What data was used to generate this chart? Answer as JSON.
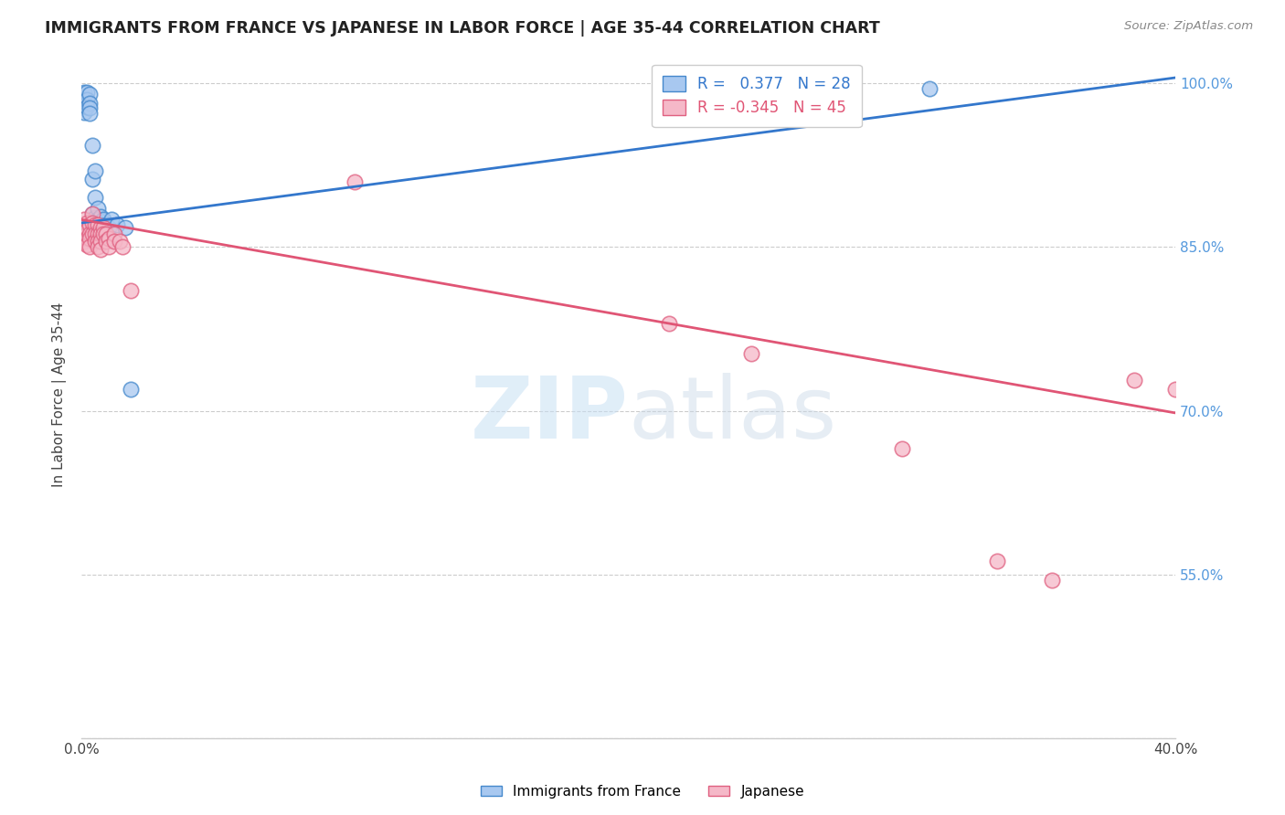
{
  "title": "IMMIGRANTS FROM FRANCE VS JAPANESE IN LABOR FORCE | AGE 35-44 CORRELATION CHART",
  "source": "Source: ZipAtlas.com",
  "ylabel": "In Labor Force | Age 35-44",
  "x_min": 0.0,
  "x_max": 0.4,
  "y_min": 0.4,
  "y_max": 1.03,
  "x_ticks": [
    0.0,
    0.05,
    0.1,
    0.15,
    0.2,
    0.25,
    0.3,
    0.35,
    0.4
  ],
  "x_tick_labels": [
    "0.0%",
    "",
    "",
    "",
    "",
    "",
    "",
    "",
    "40.0%"
  ],
  "y_ticks": [
    0.4,
    0.55,
    0.7,
    0.85,
    1.0
  ],
  "y_tick_labels": [
    "",
    "55.0%",
    "70.0%",
    "85.0%",
    "100.0%"
  ],
  "france_color": "#a8c8f0",
  "japan_color": "#f5b8c8",
  "france_edge_color": "#4488cc",
  "japan_edge_color": "#e06080",
  "france_line_color": "#3377cc",
  "japan_line_color": "#e05575",
  "watermark": "ZIPatlas",
  "france_r": 0.377,
  "france_n": 28,
  "japan_r": -0.345,
  "japan_n": 45,
  "france_line_x0": 0.0,
  "france_line_y0": 0.872,
  "france_line_x1": 0.4,
  "france_line_y1": 1.005,
  "japan_line_x0": 0.0,
  "japan_line_y0": 0.875,
  "japan_line_x1": 0.4,
  "japan_line_y1": 0.698,
  "france_points": [
    [
      0.001,
      0.992
    ],
    [
      0.001,
      0.973
    ],
    [
      0.002,
      0.992
    ],
    [
      0.002,
      0.985
    ],
    [
      0.002,
      0.978
    ],
    [
      0.003,
      0.99
    ],
    [
      0.003,
      0.982
    ],
    [
      0.003,
      0.977
    ],
    [
      0.003,
      0.972
    ],
    [
      0.004,
      0.943
    ],
    [
      0.004,
      0.912
    ],
    [
      0.004,
      0.88
    ],
    [
      0.005,
      0.92
    ],
    [
      0.005,
      0.895
    ],
    [
      0.005,
      0.877
    ],
    [
      0.005,
      0.868
    ],
    [
      0.006,
      0.885
    ],
    [
      0.006,
      0.875
    ],
    [
      0.007,
      0.878
    ],
    [
      0.007,
      0.87
    ],
    [
      0.008,
      0.875
    ],
    [
      0.009,
      0.87
    ],
    [
      0.01,
      0.868
    ],
    [
      0.011,
      0.875
    ],
    [
      0.013,
      0.87
    ],
    [
      0.016,
      0.868
    ],
    [
      0.018,
      0.72
    ],
    [
      0.31,
      0.995
    ]
  ],
  "japan_points": [
    [
      0.001,
      0.875
    ],
    [
      0.001,
      0.868
    ],
    [
      0.001,
      0.86
    ],
    [
      0.001,
      0.855
    ],
    [
      0.002,
      0.872
    ],
    [
      0.002,
      0.865
    ],
    [
      0.002,
      0.858
    ],
    [
      0.002,
      0.852
    ],
    [
      0.003,
      0.87
    ],
    [
      0.003,
      0.862
    ],
    [
      0.003,
      0.858
    ],
    [
      0.003,
      0.85
    ],
    [
      0.004,
      0.88
    ],
    [
      0.004,
      0.872
    ],
    [
      0.004,
      0.862
    ],
    [
      0.005,
      0.87
    ],
    [
      0.005,
      0.862
    ],
    [
      0.005,
      0.855
    ],
    [
      0.006,
      0.87
    ],
    [
      0.006,
      0.862
    ],
    [
      0.006,
      0.855
    ],
    [
      0.006,
      0.85
    ],
    [
      0.007,
      0.868
    ],
    [
      0.007,
      0.862
    ],
    [
      0.007,
      0.855
    ],
    [
      0.007,
      0.848
    ],
    [
      0.008,
      0.868
    ],
    [
      0.008,
      0.862
    ],
    [
      0.009,
      0.862
    ],
    [
      0.009,
      0.855
    ],
    [
      0.01,
      0.858
    ],
    [
      0.01,
      0.85
    ],
    [
      0.012,
      0.862
    ],
    [
      0.012,
      0.855
    ],
    [
      0.014,
      0.855
    ],
    [
      0.015,
      0.85
    ],
    [
      0.018,
      0.81
    ],
    [
      0.1,
      0.91
    ],
    [
      0.215,
      0.78
    ],
    [
      0.245,
      0.752
    ],
    [
      0.3,
      0.665
    ],
    [
      0.335,
      0.562
    ],
    [
      0.355,
      0.545
    ],
    [
      0.385,
      0.728
    ],
    [
      0.4,
      0.72
    ]
  ]
}
